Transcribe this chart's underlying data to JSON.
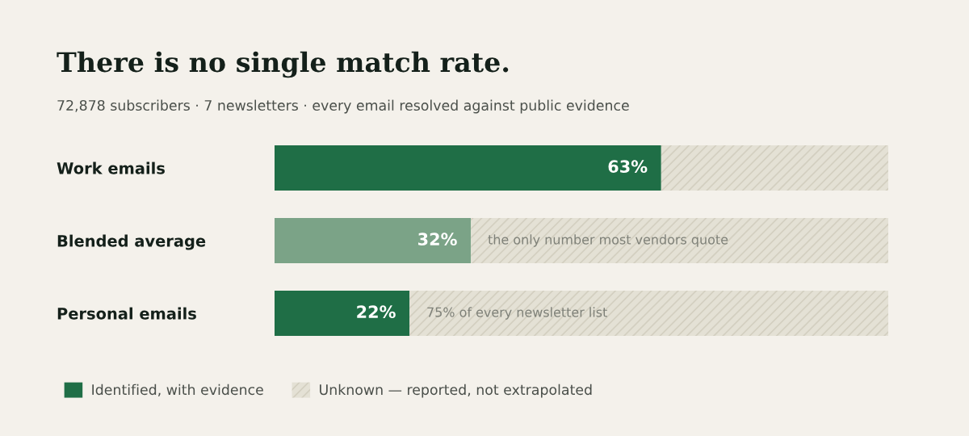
{
  "chart_data": {
    "type": "bar",
    "orientation": "horizontal",
    "stacked": true,
    "title": "There is no single match rate.",
    "subtitle": "72,878 subscribers · 7 newsletters · every email resolved against public evidence",
    "categories": [
      "Work emails",
      "Blended average",
      "Personal emails"
    ],
    "series": [
      {
        "name": "Identified, with evidence",
        "color": "#1f6e46",
        "colors": [
          "#1f6e46",
          "#7ba387",
          "#1f6e46"
        ],
        "values": [
          63,
          32,
          22
        ],
        "value_labels": [
          "63%",
          "32%",
          "22%"
        ]
      },
      {
        "name": "Unknown — reported, not extrapolated",
        "color": "#e4e1d5",
        "values": [
          37,
          68,
          78
        ]
      }
    ],
    "xlim": [
      0,
      100
    ],
    "tick_labels": "y",
    "grid": false,
    "legend": "bottom",
    "annotations": [
      {
        "text": "the only number most vendors quote",
        "x": 32,
        "y": "Blended average"
      },
      {
        "text": "75% of every newsletter list",
        "x": 22,
        "y": "Personal emails"
      }
    ]
  }
}
